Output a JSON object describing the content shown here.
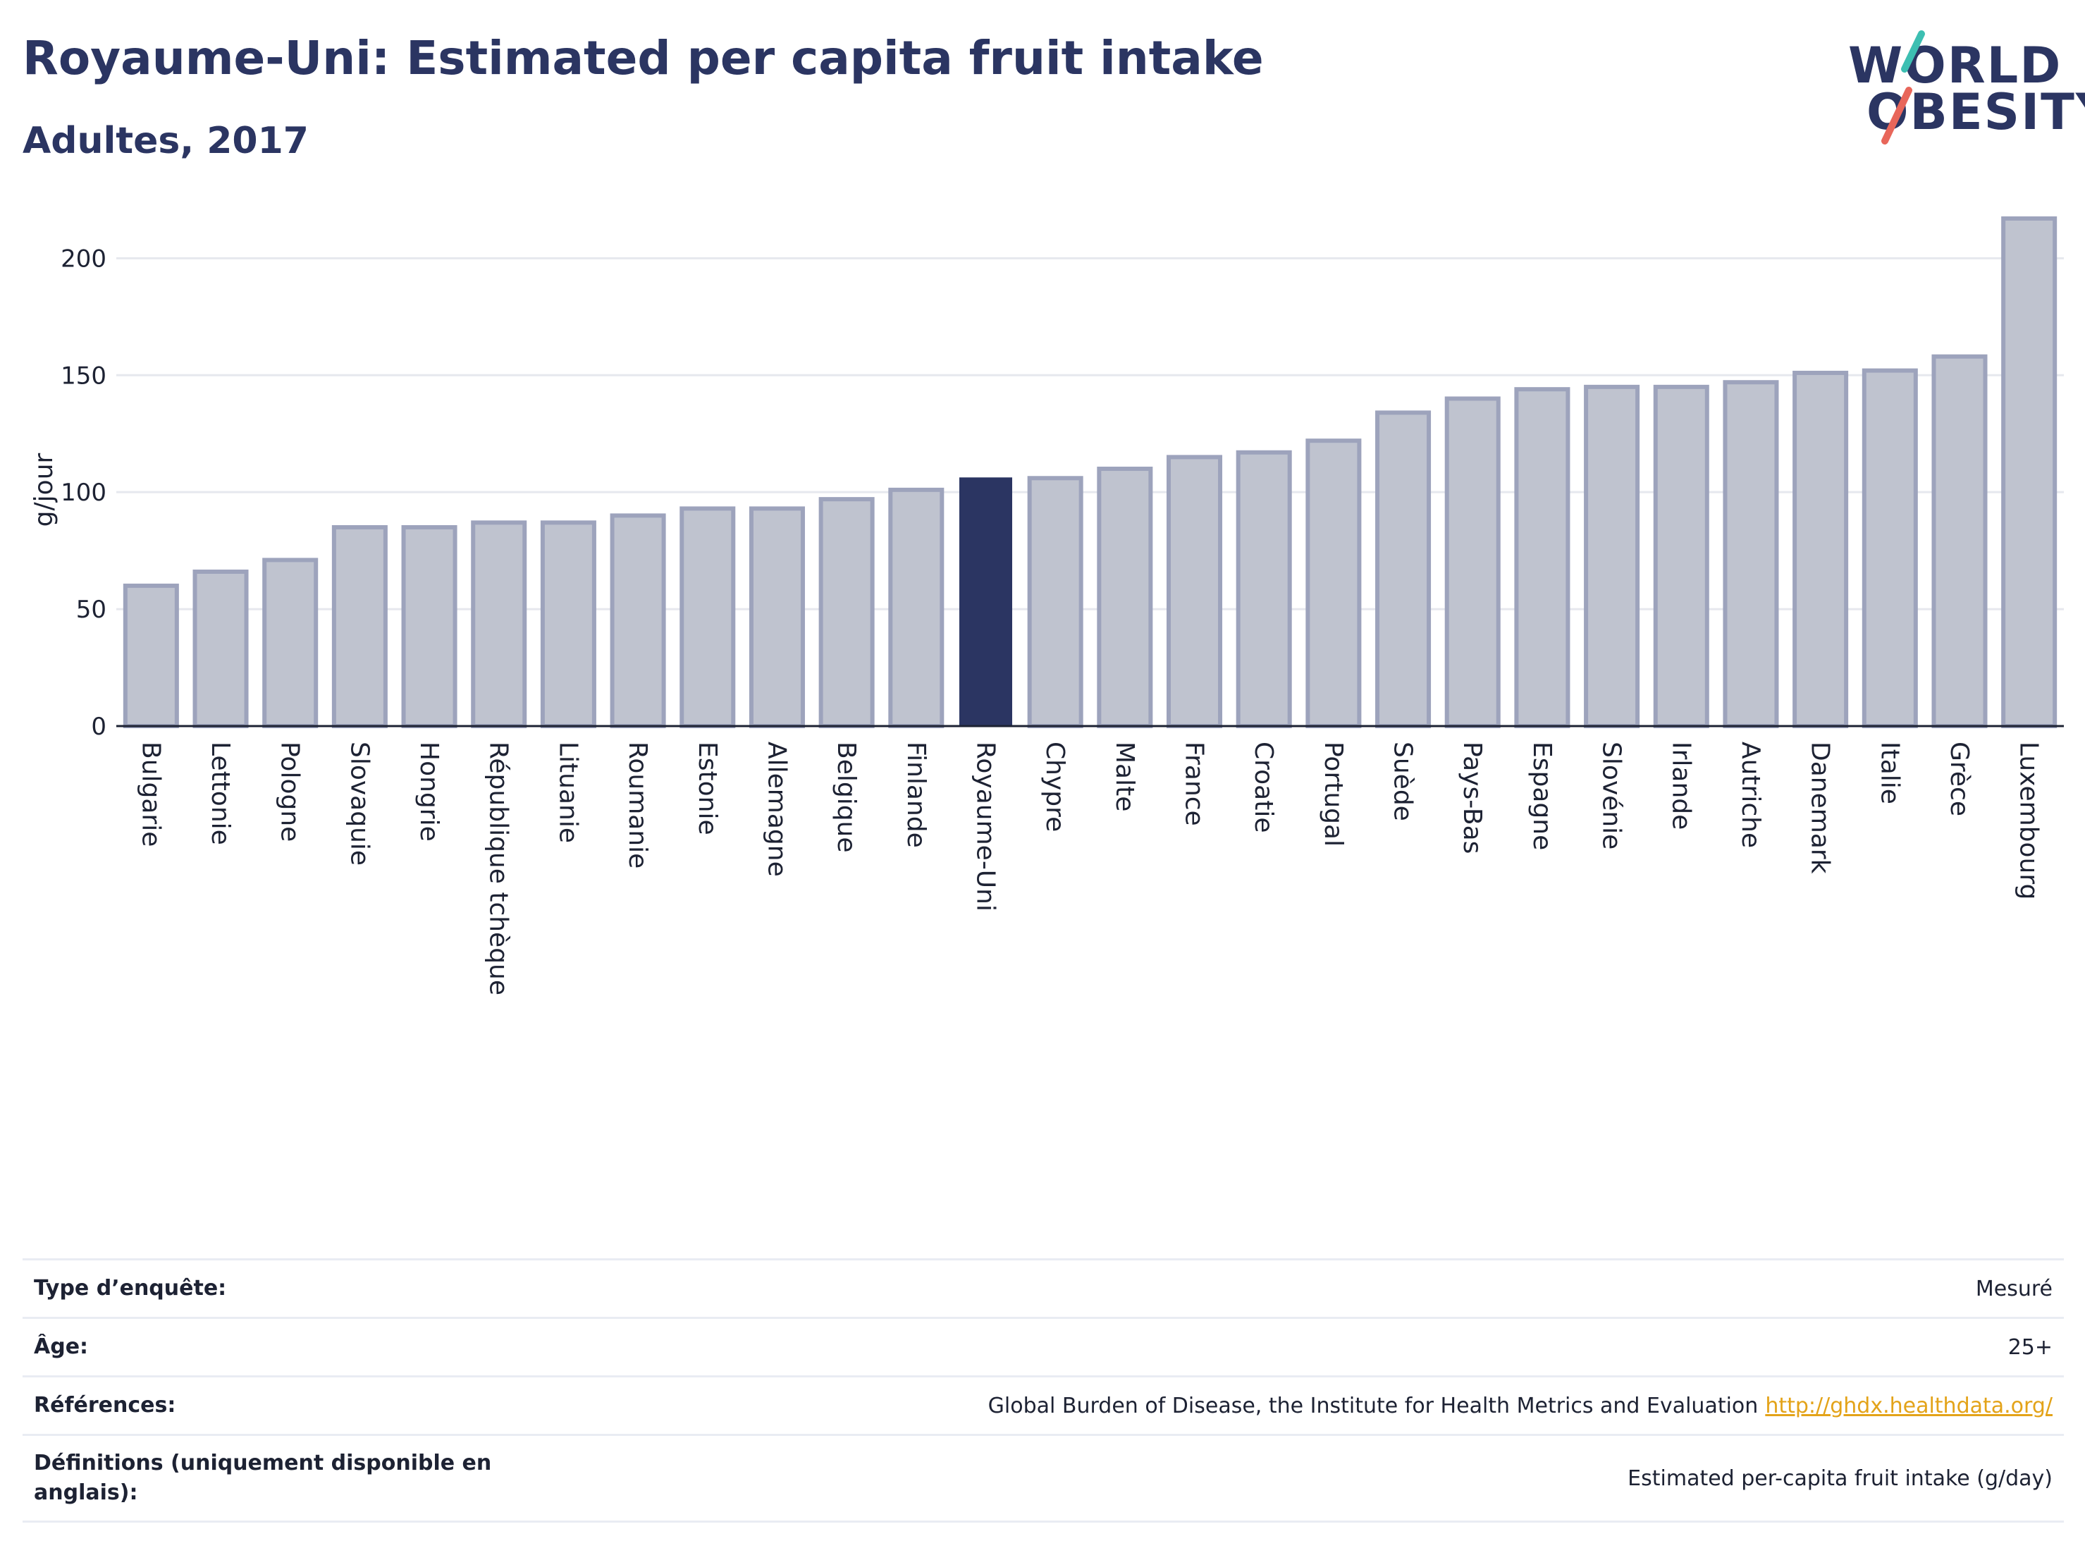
{
  "header": {
    "title": "Royaume-Uni: Estimated per capita fruit intake",
    "subtitle": "Adultes, 2017"
  },
  "logo": {
    "line1": "WORLD",
    "line2": "OBESITY",
    "slash_colors": [
      "#3dbfb2",
      "#e8665a"
    ]
  },
  "colors": {
    "bar": "#bfc3cf",
    "bar_edge": "#9da3bc",
    "highlight": "#2b3562",
    "grid": "#e6e8ee"
  },
  "chart_data": {
    "type": "bar",
    "ylabel": "g/jour",
    "ylim": [
      0,
      220
    ],
    "yticks": [
      0,
      50,
      100,
      150,
      200
    ],
    "grid": true,
    "highlight": "Royaume-Uni",
    "categories": [
      "Bulgarie",
      "Lettonie",
      "Pologne",
      "Slovaquie",
      "Hongrie",
      "République tchèque",
      "Lituanie",
      "Roumanie",
      "Estonie",
      "Allemagne",
      "Belgique",
      "Finlande",
      "Royaume-Uni",
      "Chypre",
      "Malte",
      "France",
      "Croatie",
      "Portugal",
      "Suède",
      "Pays-Bas",
      "Espagne",
      "Slovénie",
      "Irlande",
      "Autriche",
      "Danemark",
      "Italie",
      "Grèce",
      "Luxembourg"
    ],
    "values": [
      60,
      66,
      71,
      85,
      85,
      87,
      87,
      90,
      93,
      93,
      97,
      101,
      106,
      106,
      110,
      115,
      117,
      122,
      134,
      140,
      144,
      145,
      145,
      147,
      151,
      152,
      158,
      217
    ]
  },
  "meta": [
    {
      "label": "Type d’enquête:",
      "value": "Mesuré"
    },
    {
      "label": "Âge:",
      "value": "25+"
    },
    {
      "label": "Références:",
      "value": "Global Burden of Disease, the Institute for Health Metrics and Evaluation",
      "link": "http://ghdx.healthdata.org/"
    },
    {
      "label": "Définitions (uniquement disponible en anglais):",
      "value": "Estimated per-capita fruit intake (g/day)"
    }
  ]
}
